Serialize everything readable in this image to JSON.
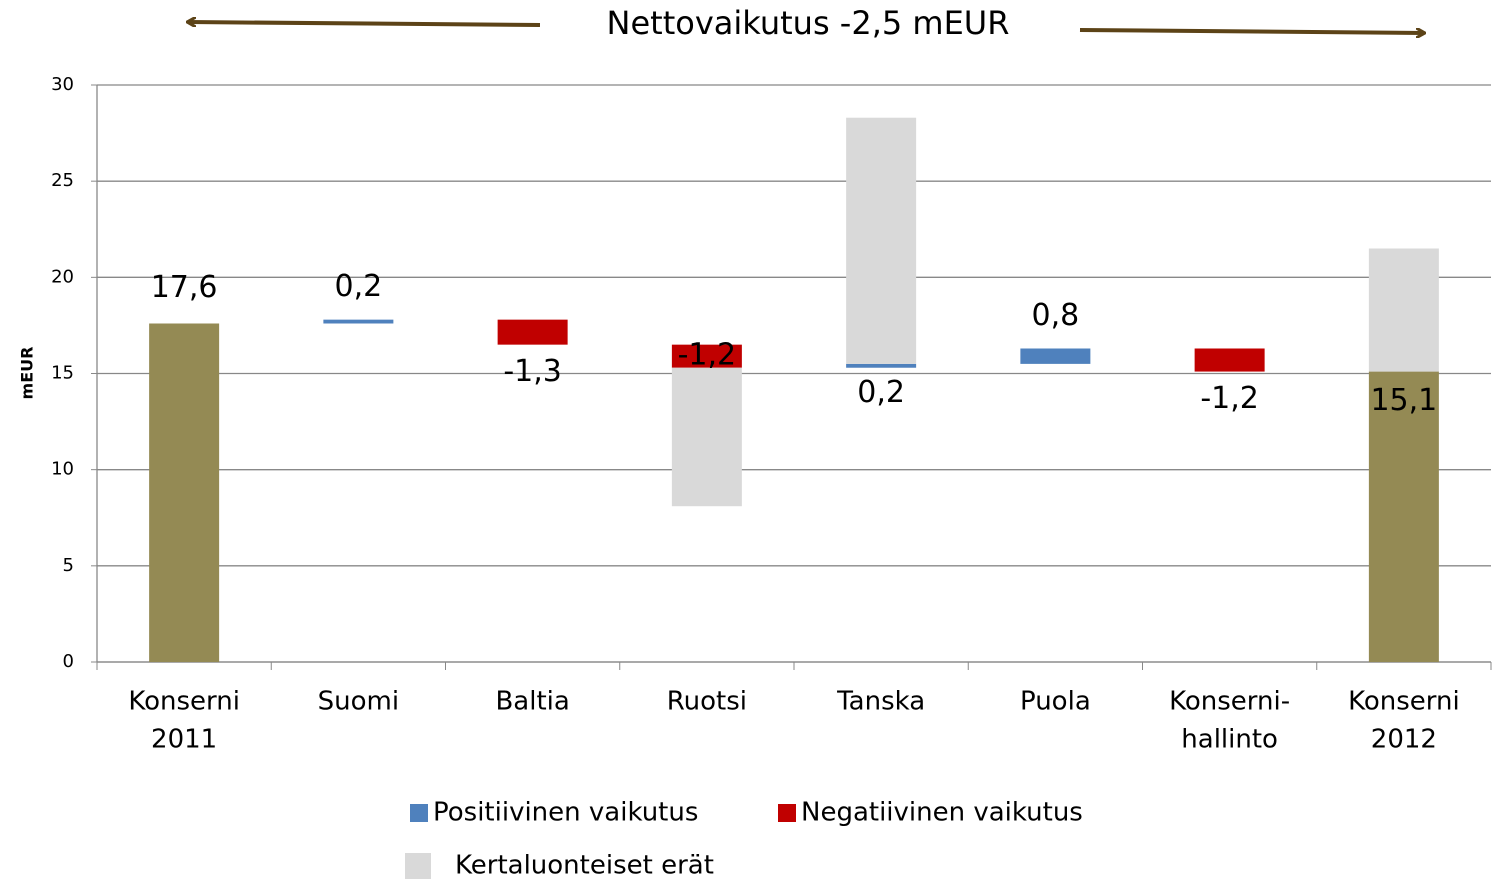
{
  "chart_data": {
    "type": "waterfall",
    "title": "Nettovaikutus -2,5 mEUR",
    "y_label": "mEUR",
    "categories": [
      [
        "Konserni",
        "2011"
      ],
      [
        "Suomi"
      ],
      [
        "Baltia"
      ],
      [
        "Ruotsi"
      ],
      [
        "Tanska"
      ],
      [
        "Puola"
      ],
      [
        "Konserni-",
        "hallinto"
      ],
      [
        "Konserni",
        "2012"
      ]
    ],
    "totals": {
      "color": "#948a54",
      "values": [
        17.6,
        null,
        null,
        null,
        null,
        null,
        null,
        15.1
      ],
      "value_labels": [
        "17,6",
        null,
        null,
        null,
        null,
        null,
        null,
        "15,1"
      ]
    },
    "series": [
      {
        "name": "Positiivinen vaikutus",
        "color": "#4f81bd",
        "values": [
          null,
          0.2,
          null,
          null,
          0.2,
          0.8,
          null,
          null
        ],
        "value_labels": [
          null,
          "0,2",
          null,
          null,
          "0,2",
          "0,8",
          null,
          null
        ]
      },
      {
        "name": "Negatiivinen vaikutus",
        "color": "#c00000",
        "values": [
          null,
          null,
          -1.3,
          -1.2,
          null,
          null,
          -1.2,
          null
        ],
        "value_labels": [
          null,
          null,
          "-1,3",
          "-1,2",
          null,
          null,
          "-1,2",
          null
        ]
      },
      {
        "name": "Kertaluonteiset erät",
        "color": "#d9d9d9",
        "values": [
          null,
          null,
          null,
          -7.2,
          12.8,
          null,
          null,
          6.4
        ]
      }
    ],
    "ylim": [
      0,
      30
    ],
    "yticks": [
      0,
      5,
      10,
      15,
      20,
      25,
      30
    ],
    "grid": true
  }
}
